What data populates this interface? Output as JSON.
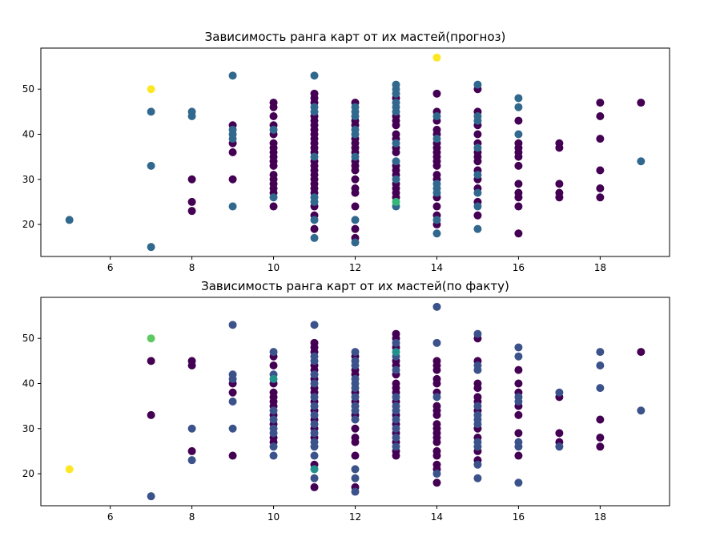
{
  "chart_data": [
    {
      "type": "scatter",
      "title": "Зависимость ранга карт от их мастей(прогноз)",
      "xlabel": "",
      "ylabel": "",
      "xlim": [
        4.3,
        19.7
      ],
      "ylim": [
        12.9,
        59.1
      ],
      "xticks": [
        6,
        8,
        10,
        12,
        14,
        16,
        18
      ],
      "yticks": [
        20,
        30,
        40,
        50
      ],
      "grid": false,
      "colormap": "viridis",
      "colors": {
        "0": "#440154",
        "1": "#31688e",
        "2": "#35b779",
        "3": "#fde725"
      },
      "points": [
        {
          "x": 5,
          "y": [
            21
          ],
          "c": 1
        },
        {
          "x": 7,
          "y": [
            15,
            33,
            45
          ],
          "c": 1
        },
        {
          "x": 7,
          "y": [
            50
          ],
          "c": 3
        },
        {
          "x": 8,
          "y": [
            23,
            25,
            30
          ],
          "c": 0
        },
        {
          "x": 8,
          "y": [
            44,
            45
          ],
          "c": 1
        },
        {
          "x": 9,
          "y": [
            30,
            36,
            38,
            42
          ],
          "c": 0
        },
        {
          "x": 9,
          "y": [
            24,
            39,
            40,
            41,
            53
          ],
          "c": 1
        },
        {
          "x": 10,
          "y": [
            24,
            27,
            28,
            29,
            30,
            31,
            33,
            34,
            35,
            36,
            37,
            38,
            40,
            42,
            44,
            46,
            47
          ],
          "c": 0
        },
        {
          "x": 10,
          "y": [
            26,
            41
          ],
          "c": 1
        },
        {
          "x": 11,
          "y": [
            19,
            22,
            24,
            27,
            28,
            29,
            30,
            31,
            32,
            33,
            34,
            36,
            37,
            38,
            39,
            40,
            41,
            42,
            43,
            44,
            47,
            48,
            49
          ],
          "c": 0
        },
        {
          "x": 11,
          "y": [
            17,
            21,
            25,
            26,
            35,
            45,
            46,
            53
          ],
          "c": 1
        },
        {
          "x": 12,
          "y": [
            17,
            19,
            24,
            27,
            28,
            30,
            32,
            33,
            34,
            36,
            37,
            38,
            39,
            42,
            43,
            47
          ],
          "c": 0
        },
        {
          "x": 12,
          "y": [
            16,
            21,
            35,
            40,
            41,
            44,
            45,
            46
          ],
          "c": 1
        },
        {
          "x": 13,
          "y": [
            26,
            27,
            28,
            29,
            31,
            32,
            33,
            36,
            37,
            39,
            40,
            42,
            43,
            44,
            48
          ],
          "c": 0
        },
        {
          "x": 13,
          "y": [
            24,
            30,
            34,
            38,
            45,
            46,
            47,
            49,
            50,
            51
          ],
          "c": 1
        },
        {
          "x": 13,
          "y": [
            25
          ],
          "c": 2
        },
        {
          "x": 14,
          "y": [
            20,
            22,
            24,
            26,
            30,
            31,
            33,
            34,
            35,
            36,
            37,
            38,
            40,
            41,
            43,
            45,
            49
          ],
          "c": 0
        },
        {
          "x": 14,
          "y": [
            18,
            21,
            27,
            28,
            29,
            39,
            44
          ],
          "c": 1
        },
        {
          "x": 14,
          "y": [
            57
          ],
          "c": 3
        },
        {
          "x": 15,
          "y": [
            22,
            25,
            28,
            30,
            32,
            34,
            35,
            36,
            38,
            40,
            42,
            45,
            50
          ],
          "c": 0
        },
        {
          "x": 15,
          "y": [
            19,
            24,
            27,
            31,
            37,
            43,
            44,
            51
          ],
          "c": 1
        },
        {
          "x": 16,
          "y": [
            18,
            24,
            26,
            27,
            29,
            33,
            35,
            36,
            37,
            38,
            43
          ],
          "c": 0
        },
        {
          "x": 16,
          "y": [
            40,
            46,
            48
          ],
          "c": 1
        },
        {
          "x": 17,
          "y": [
            26,
            27,
            29,
            37,
            38
          ],
          "c": 0
        },
        {
          "x": 18,
          "y": [
            26,
            28,
            32,
            39,
            44,
            47
          ],
          "c": 0
        },
        {
          "x": 19,
          "y": [
            47
          ],
          "c": 0
        },
        {
          "x": 19,
          "y": [
            34
          ],
          "c": 1
        }
      ]
    },
    {
      "type": "scatter",
      "title": "Зависимость ранга карт от их мастей(по факту)",
      "xlabel": "",
      "ylabel": "",
      "xlim": [
        4.3,
        19.7
      ],
      "ylim": [
        12.9,
        59.1
      ],
      "xticks": [
        6,
        8,
        10,
        12,
        14,
        16,
        18
      ],
      "yticks": [
        20,
        30,
        40,
        50
      ],
      "grid": false,
      "colormap": "viridis",
      "colors": {
        "0": "#440154",
        "1": "#3b528b",
        "2": "#21918c",
        "3": "#5ec962",
        "4": "#fde725"
      },
      "points": [
        {
          "x": 5,
          "y": [
            21
          ],
          "c": 4
        },
        {
          "x": 7,
          "y": [
            33,
            45
          ],
          "c": 0
        },
        {
          "x": 7,
          "y": [
            15
          ],
          "c": 1
        },
        {
          "x": 7,
          "y": [
            50
          ],
          "c": 3
        },
        {
          "x": 8,
          "y": [
            25,
            44,
            45
          ],
          "c": 0
        },
        {
          "x": 8,
          "y": [
            23,
            30
          ],
          "c": 1
        },
        {
          "x": 9,
          "y": [
            24,
            38,
            40
          ],
          "c": 0
        },
        {
          "x": 9,
          "y": [
            30,
            36,
            41,
            42,
            53
          ],
          "c": 1
        },
        {
          "x": 10,
          "y": [
            27,
            28,
            31,
            33,
            35,
            36,
            37,
            38,
            40,
            44,
            46
          ],
          "c": 0
        },
        {
          "x": 10,
          "y": [
            24,
            26,
            29,
            30,
            32,
            34,
            42,
            47
          ],
          "c": 1
        },
        {
          "x": 10,
          "y": [
            41
          ],
          "c": 2
        },
        {
          "x": 11,
          "y": [
            17,
            22,
            28,
            30,
            32,
            34,
            36,
            38,
            39,
            41,
            43,
            44,
            47,
            48,
            49
          ],
          "c": 0
        },
        {
          "x": 11,
          "y": [
            19,
            24,
            26,
            27,
            29,
            31,
            33,
            35,
            37,
            40,
            42,
            45,
            46,
            53
          ],
          "c": 1
        },
        {
          "x": 11,
          "y": [
            21
          ],
          "c": 2
        },
        {
          "x": 12,
          "y": [
            17,
            24,
            27,
            28,
            30,
            33,
            36,
            38,
            42,
            43,
            46
          ],
          "c": 0
        },
        {
          "x": 12,
          "y": [
            16,
            19,
            21,
            32,
            34,
            35,
            37,
            39,
            40,
            41,
            44,
            45,
            47
          ],
          "c": 1
        },
        {
          "x": 13,
          "y": [
            24,
            25,
            27,
            29,
            31,
            33,
            36,
            38,
            39,
            40,
            42,
            44,
            45,
            48,
            50,
            51
          ],
          "c": 0
        },
        {
          "x": 13,
          "y": [
            26,
            28,
            30,
            32,
            34,
            35,
            37,
            43,
            46,
            49
          ],
          "c": 1
        },
        {
          "x": 13,
          "y": [
            47
          ],
          "c": 2
        },
        {
          "x": 14,
          "y": [
            18,
            21,
            22,
            24,
            25,
            27,
            28,
            29,
            30,
            31,
            33,
            34,
            35,
            38,
            40,
            41,
            43,
            44,
            45
          ],
          "c": 0
        },
        {
          "x": 14,
          "y": [
            20,
            37,
            49,
            57
          ],
          "c": 1
        },
        {
          "x": 15,
          "y": [
            23,
            25,
            28,
            30,
            34,
            36,
            37,
            39,
            40,
            45,
            50
          ],
          "c": 0
        },
        {
          "x": 15,
          "y": [
            19,
            22,
            26,
            27,
            31,
            32,
            33,
            35,
            43,
            44,
            51
          ],
          "c": 1
        },
        {
          "x": 16,
          "y": [
            24,
            29,
            33,
            35,
            38,
            40,
            43
          ],
          "c": 0
        },
        {
          "x": 16,
          "y": [
            18,
            26,
            27,
            36,
            37,
            46,
            48
          ],
          "c": 1
        },
        {
          "x": 17,
          "y": [
            27,
            29,
            37
          ],
          "c": 0
        },
        {
          "x": 17,
          "y": [
            26,
            38
          ],
          "c": 1
        },
        {
          "x": 18,
          "y": [
            26,
            28,
            32
          ],
          "c": 0
        },
        {
          "x": 18,
          "y": [
            39,
            44,
            47
          ],
          "c": 1
        },
        {
          "x": 19,
          "y": [
            47
          ],
          "c": 0
        },
        {
          "x": 19,
          "y": [
            34
          ],
          "c": 1
        }
      ]
    }
  ]
}
